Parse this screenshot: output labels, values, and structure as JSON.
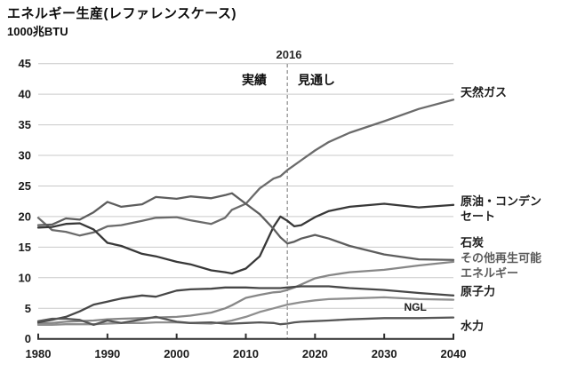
{
  "page": {
    "title": "エネルギー生産(レファレンスケース)",
    "unit_label": "1000兆BTU"
  },
  "annotations": {
    "divider_year": "2016",
    "left_region": "実績",
    "right_region": "見通し"
  },
  "chart_data": {
    "type": "line",
    "title": "エネルギー生産(レファレンスケース)",
    "ylabel": "1000兆BTU",
    "xlim": [
      1980,
      2040
    ],
    "ylim": [
      0,
      45
    ],
    "x_ticks": [
      1980,
      1990,
      2000,
      2010,
      2020,
      2030,
      2040
    ],
    "y_ticks": [
      0,
      5,
      10,
      15,
      20,
      25,
      30,
      35,
      40,
      45
    ],
    "grid": "horizontal",
    "divider_year": 2016,
    "divider_labels": [
      "実績",
      "見通し"
    ],
    "legend_position": "right-margin-labels",
    "x": [
      1980,
      1982,
      1984,
      1986,
      1988,
      1990,
      1992,
      1995,
      1997,
      2000,
      2002,
      2005,
      2007,
      2008,
      2010,
      2012,
      2014,
      2015,
      2016,
      2017,
      2018,
      2020,
      2022,
      2025,
      2030,
      2035,
      2040
    ],
    "series": [
      {
        "key": "natural-gas",
        "label": "天然ガス",
        "label_lines": [
          "天然ガス"
        ],
        "color": "#6b6b6b",
        "label_color": "#1c1c1c",
        "label_value": 40.2,
        "inline": false,
        "values": [
          19.8,
          17.8,
          17.5,
          16.9,
          17.4,
          18.4,
          18.6,
          19.3,
          19.8,
          19.9,
          19.4,
          18.8,
          19.8,
          21.1,
          22.1,
          24.6,
          26.2,
          26.6,
          27.6,
          28.4,
          29.2,
          30.8,
          32.2,
          33.7,
          35.6,
          37.6,
          39.1
        ]
      },
      {
        "key": "crude-oil-condensate",
        "label": "原油・コンデンセート",
        "label_lines": [
          "原油・コンデン",
          "セート"
        ],
        "color": "#383838",
        "label_color": "#1c1c1c",
        "label_value": 21.2,
        "inline": false,
        "values": [
          18.2,
          18.3,
          18.8,
          18.9,
          17.9,
          15.7,
          15.2,
          13.9,
          13.5,
          12.6,
          12.2,
          11.2,
          10.9,
          10.7,
          11.5,
          13.5,
          18.3,
          20.0,
          19.3,
          18.4,
          18.6,
          19.9,
          20.9,
          21.6,
          22.1,
          21.5,
          21.9
        ]
      },
      {
        "key": "coal",
        "label": "石炭",
        "label_lines": [
          "石炭"
        ],
        "color": "#5d5d5d",
        "label_color": "#1c1c1c",
        "label_value": 15.7,
        "inline": false,
        "values": [
          18.6,
          18.7,
          19.7,
          19.5,
          20.7,
          22.4,
          21.6,
          22.0,
          23.2,
          22.9,
          23.3,
          23.0,
          23.5,
          23.8,
          22.1,
          20.4,
          18.0,
          16.6,
          15.6,
          15.9,
          16.4,
          17.0,
          16.4,
          15.2,
          13.8,
          13.0,
          12.9
        ]
      },
      {
        "key": "other-renewables",
        "label": "その他再生可能エネルギー",
        "label_lines": [
          "その他再生可能",
          "エネルギー"
        ],
        "color": "#878787",
        "label_color": "#5a5a5a",
        "label_value": 11.9,
        "inline": false,
        "values": [
          2.5,
          2.6,
          2.8,
          2.9,
          3.0,
          3.2,
          3.3,
          3.4,
          3.5,
          3.6,
          3.8,
          4.3,
          5.0,
          5.5,
          6.7,
          7.2,
          7.6,
          7.7,
          8.0,
          8.4,
          8.9,
          9.9,
          10.4,
          10.9,
          11.3,
          12.0,
          12.6
        ]
      },
      {
        "key": "nuclear",
        "label": "原子力",
        "label_lines": [
          "原子力"
        ],
        "color": "#474747",
        "label_color": "#1c1c1c",
        "label_value": 7.6,
        "inline": false,
        "values": [
          2.7,
          3.1,
          3.6,
          4.5,
          5.6,
          6.1,
          6.6,
          7.1,
          6.9,
          7.9,
          8.1,
          8.2,
          8.4,
          8.4,
          8.4,
          8.3,
          8.3,
          8.3,
          8.4,
          8.5,
          8.6,
          8.6,
          8.6,
          8.3,
          8.0,
          7.5,
          7.1
        ]
      },
      {
        "key": "ngl",
        "label": "NGL",
        "label_lines": [
          "NGL"
        ],
        "color": "#8f8f8f",
        "label_color": "#1c1c1c",
        "label_value": 5.1,
        "inline": true,
        "label_year": 2034.5,
        "values": [
          2.3,
          2.3,
          2.4,
          2.4,
          2.4,
          2.5,
          2.6,
          2.6,
          2.7,
          2.7,
          2.6,
          2.5,
          2.8,
          3.0,
          3.6,
          4.4,
          5.0,
          5.3,
          5.6,
          5.8,
          6.0,
          6.3,
          6.5,
          6.6,
          6.8,
          6.5,
          6.4
        ]
      },
      {
        "key": "hydro",
        "label": "水力",
        "label_lines": [
          "水力"
        ],
        "color": "#565656",
        "label_color": "#1c1c1c",
        "label_value": 2.0,
        "inline": false,
        "values": [
          2.9,
          3.3,
          3.3,
          3.1,
          2.3,
          3.0,
          2.6,
          3.2,
          3.6,
          2.8,
          2.6,
          2.7,
          2.5,
          2.5,
          2.6,
          2.7,
          2.6,
          2.4,
          2.5,
          2.7,
          2.8,
          2.9,
          3.0,
          3.2,
          3.4,
          3.4,
          3.5
        ]
      }
    ]
  },
  "style": {
    "grid_color": "#c9c9c9",
    "axis_color": "#2e2e2e",
    "divider_color": "#9a9a9a",
    "tick_label_color": "#1a1a1a"
  }
}
